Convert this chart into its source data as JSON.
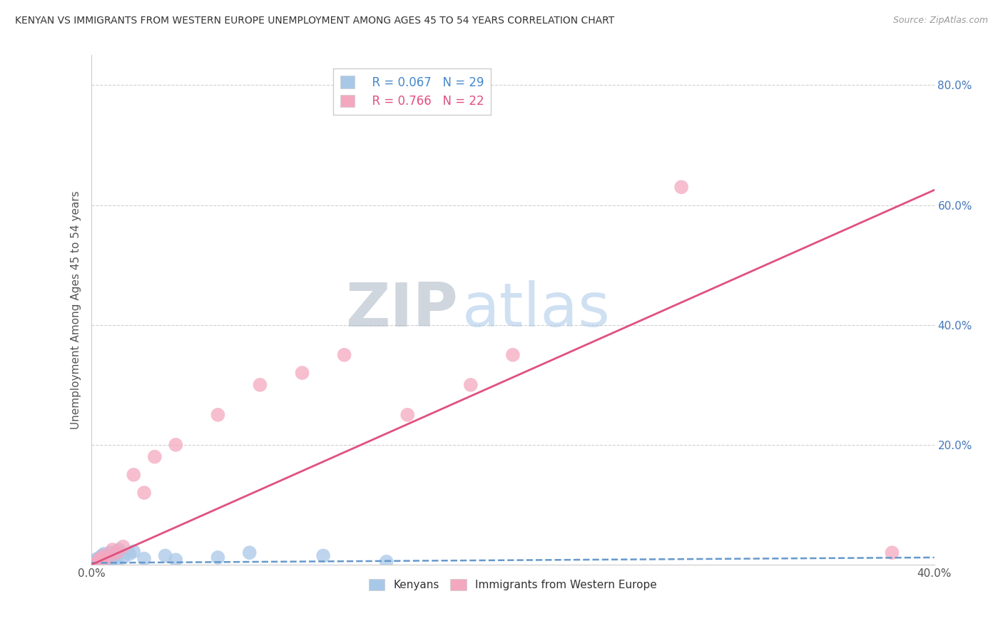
{
  "title": "KENYAN VS IMMIGRANTS FROM WESTERN EUROPE UNEMPLOYMENT AMONG AGES 45 TO 54 YEARS CORRELATION CHART",
  "source": "Source: ZipAtlas.com",
  "ylabel": "Unemployment Among Ages 45 to 54 years",
  "xlim": [
    0.0,
    0.4
  ],
  "ylim": [
    0.0,
    0.85
  ],
  "yticks": [
    0.0,
    0.2,
    0.4,
    0.6,
    0.8
  ],
  "yticklabels": [
    "",
    "20.0%",
    "40.0%",
    "60.0%",
    "80.0%"
  ],
  "background_color": "#ffffff",
  "grid_color": "#d0d0d0",
  "watermark_zip": "ZIP",
  "watermark_atlas": "atlas",
  "legend_R1": "R = 0.067",
  "legend_N1": "N = 29",
  "legend_R2": "R = 0.766",
  "legend_N2": "N = 22",
  "kenyan_color": "#a8c8e8",
  "western_europe_color": "#f4a8c0",
  "kenyan_line_color": "#6699cc",
  "western_europe_line_color": "#e05080",
  "kenyan_x": [
    0.0,
    0.001,
    0.002,
    0.002,
    0.003,
    0.003,
    0.004,
    0.004,
    0.005,
    0.005,
    0.006,
    0.006,
    0.007,
    0.008,
    0.009,
    0.01,
    0.011,
    0.012,
    0.013,
    0.015,
    0.018,
    0.02,
    0.025,
    0.035,
    0.04,
    0.06,
    0.075,
    0.11,
    0.14
  ],
  "kenyan_y": [
    0.0,
    0.003,
    0.002,
    0.008,
    0.005,
    0.01,
    0.004,
    0.012,
    0.006,
    0.015,
    0.003,
    0.018,
    0.008,
    0.005,
    0.02,
    0.01,
    0.015,
    0.008,
    0.025,
    0.012,
    0.018,
    0.022,
    0.01,
    0.015,
    0.008,
    0.012,
    0.02,
    0.015,
    0.005
  ],
  "western_europe_x": [
    0.0,
    0.003,
    0.004,
    0.005,
    0.006,
    0.008,
    0.01,
    0.012,
    0.015,
    0.02,
    0.025,
    0.03,
    0.04,
    0.06,
    0.08,
    0.1,
    0.12,
    0.15,
    0.18,
    0.2,
    0.28,
    0.38
  ],
  "western_europe_y": [
    0.0,
    0.005,
    0.01,
    0.008,
    0.015,
    0.012,
    0.025,
    0.02,
    0.03,
    0.15,
    0.12,
    0.18,
    0.2,
    0.25,
    0.3,
    0.32,
    0.35,
    0.25,
    0.3,
    0.35,
    0.63,
    0.02
  ],
  "kenyan_line_x": [
    0.0,
    0.4
  ],
  "kenyan_line_y": [
    0.003,
    0.012
  ],
  "western_line_x": [
    0.0,
    0.4
  ],
  "western_line_y": [
    0.0,
    0.625
  ]
}
